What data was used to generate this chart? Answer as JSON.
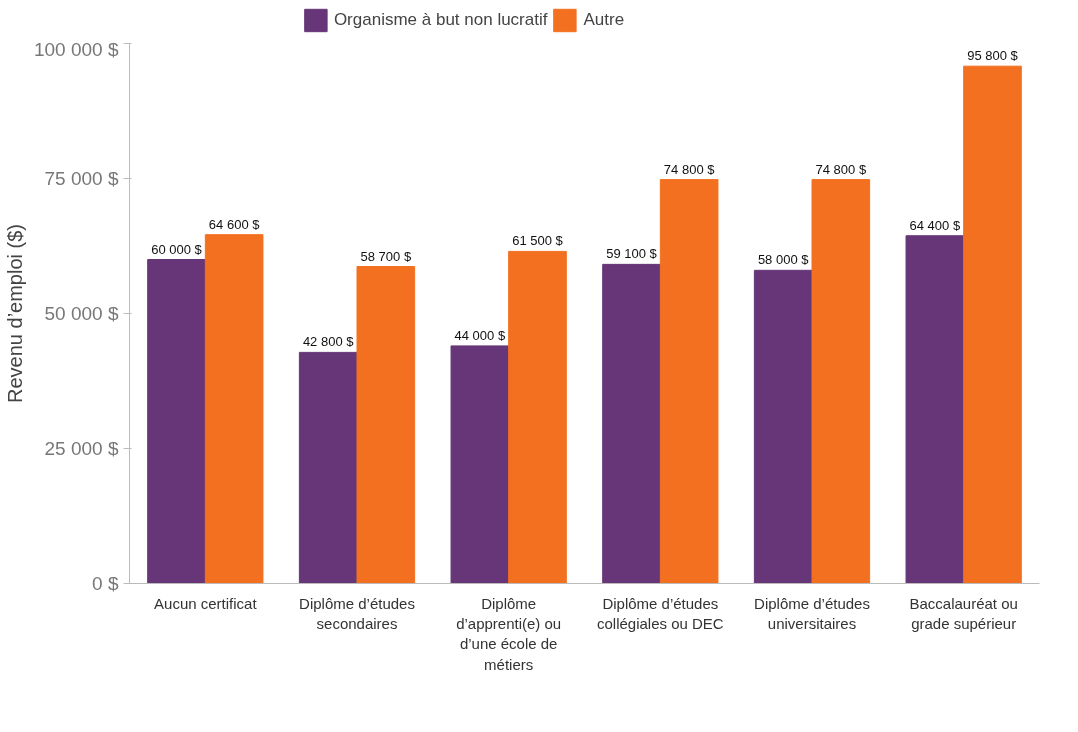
{
  "chart_data": {
    "type": "bar",
    "ylabel": "Revenu d’emploi ($)",
    "categories": [
      "Aucun certificat",
      "Diplôme d’études secondaires",
      "Diplôme d’apprenti(e) ou d’une école de métiers",
      "Diplôme d’études collégiales ou DEC",
      "Diplôme d’études universitaires",
      "Baccalauréat ou grade supérieur"
    ],
    "series": [
      {
        "name": "Organisme à but non lucratif",
        "color": "#663678",
        "values": [
          60000,
          42800,
          44000,
          59100,
          58000,
          64400
        ],
        "value_labels": [
          "60 000 $",
          "42 800 $",
          "44 000 $",
          "59 100 $",
          "58 000 $",
          "64 400 $"
        ]
      },
      {
        "name": "Autre",
        "color": "#f37021",
        "values": [
          64600,
          58700,
          61500,
          74800,
          74800,
          95800
        ],
        "value_labels": [
          "64 600 $",
          "58 700 $",
          "61 500 $",
          "74 800 $",
          "74 800 $",
          "95 800 $"
        ]
      }
    ],
    "ylim": [
      0,
      100000
    ],
    "yticks": [
      {
        "value": 0,
        "label": "0 $"
      },
      {
        "value": 25000,
        "label": "25 000 $"
      },
      {
        "value": 50000,
        "label": "50 000 $"
      },
      {
        "value": 75000,
        "label": "75 000 $"
      },
      {
        "value": 100000,
        "label": "100 000 $"
      }
    ],
    "grid": false,
    "legend": "top"
  }
}
